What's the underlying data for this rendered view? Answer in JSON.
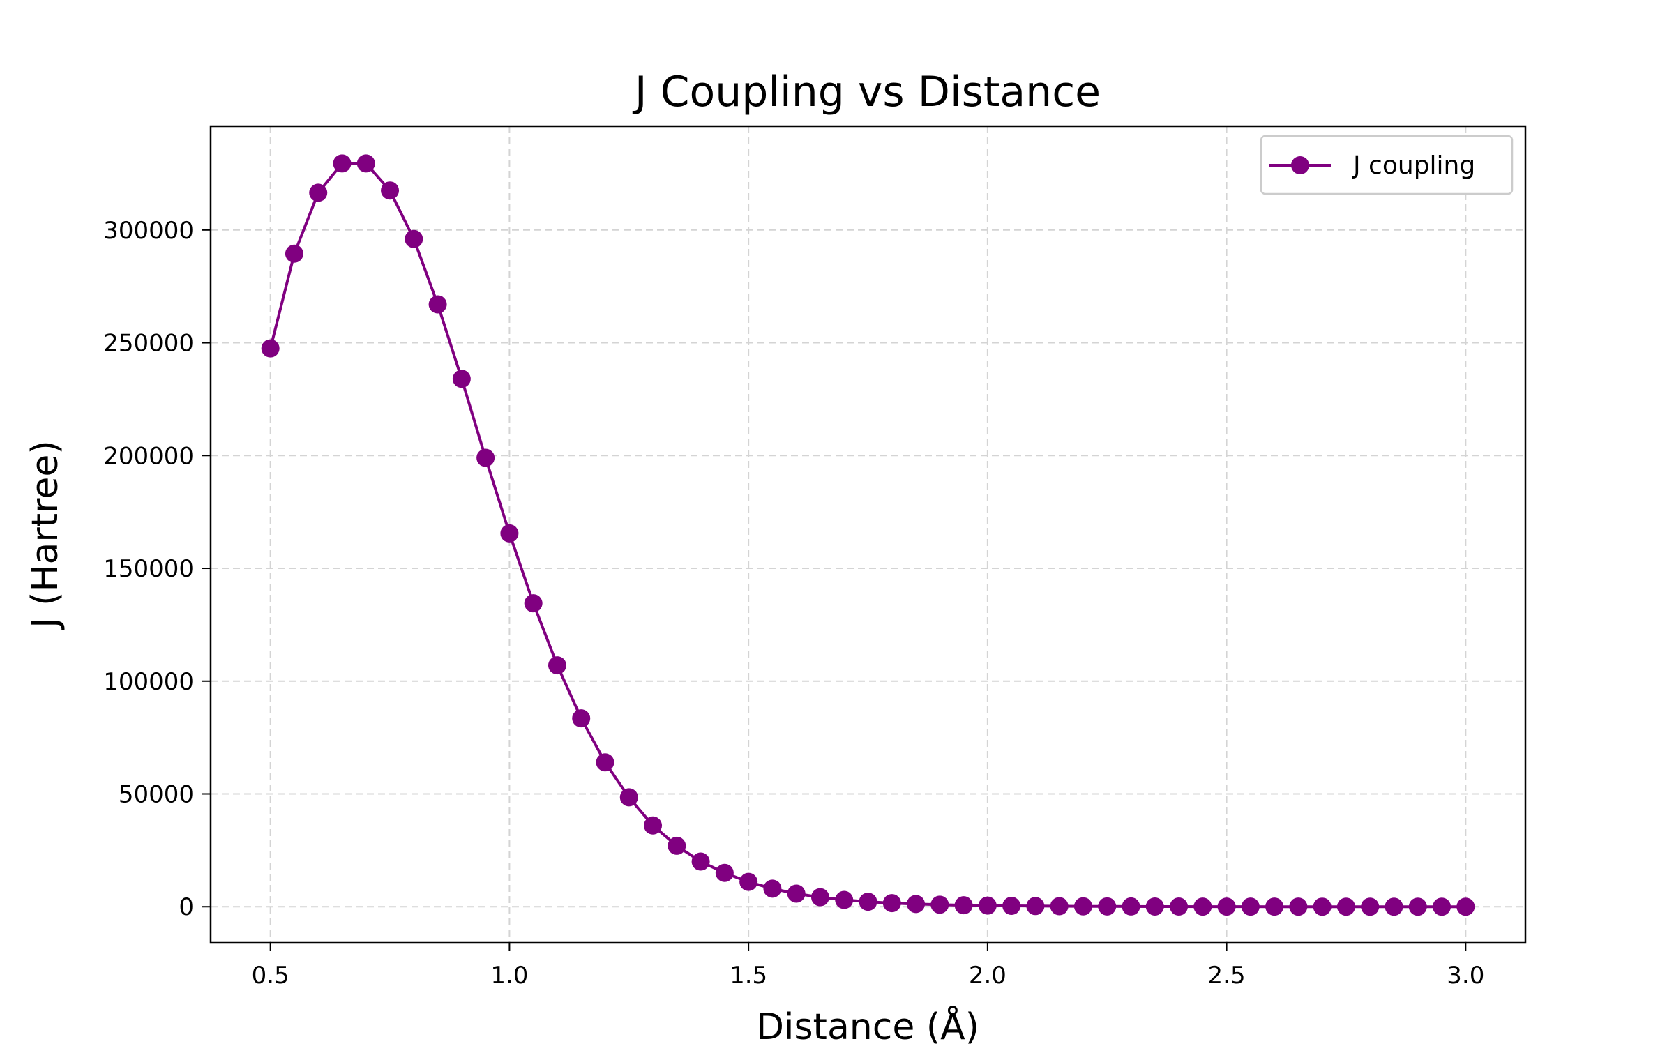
{
  "chart_data": {
    "type": "line",
    "title": "J Coupling vs Distance",
    "xlabel": "Distance (Å)",
    "ylabel": "J (Hartree)",
    "xlim": [
      0.375,
      3.125
    ],
    "ylim": [
      -16000,
      346000
    ],
    "grid": true,
    "legend_position": "top-right",
    "x_ticks": [
      0.5,
      1.0,
      1.5,
      2.0,
      2.5,
      3.0
    ],
    "x_tick_labels": [
      "0.5",
      "1.0",
      "1.5",
      "2.0",
      "2.5",
      "3.0"
    ],
    "y_ticks": [
      0,
      50000,
      100000,
      150000,
      200000,
      250000,
      300000
    ],
    "y_tick_labels": [
      "0",
      "50000",
      "100000",
      "150000",
      "200000",
      "250000",
      "300000"
    ],
    "series": [
      {
        "name": "J coupling",
        "color": "#800080",
        "marker": "circle",
        "x": [
          0.5,
          0.55,
          0.6,
          0.65,
          0.7,
          0.75,
          0.8,
          0.85,
          0.9,
          0.95,
          1.0,
          1.05,
          1.1,
          1.15,
          1.2,
          1.25,
          1.3,
          1.35,
          1.4,
          1.45,
          1.5,
          1.55,
          1.6,
          1.65,
          1.7,
          1.75,
          1.8,
          1.85,
          1.9,
          1.95,
          2.0,
          2.05,
          2.1,
          2.15,
          2.2,
          2.25,
          2.3,
          2.35,
          2.4,
          2.45,
          2.5,
          2.55,
          2.6,
          2.65,
          2.7,
          2.75,
          2.8,
          2.85,
          2.9,
          2.95,
          3.0
        ],
        "values": [
          247500,
          289500,
          316500,
          329500,
          329500,
          317500,
          296000,
          267000,
          234000,
          199000,
          165500,
          134500,
          107000,
          83500,
          64000,
          48500,
          36000,
          27000,
          20000,
          15000,
          11000,
          8000,
          5800,
          4200,
          3000,
          2200,
          1600,
          1200,
          900,
          650,
          500,
          380,
          290,
          220,
          170,
          130,
          100,
          80,
          60,
          50,
          40,
          30,
          25,
          20,
          15,
          12,
          10,
          8,
          6,
          5,
          4
        ]
      }
    ]
  }
}
